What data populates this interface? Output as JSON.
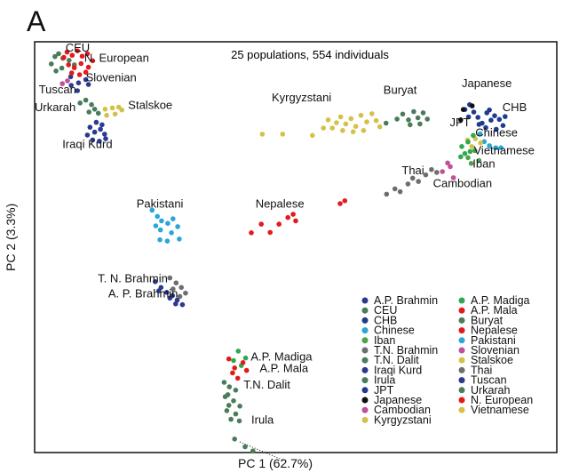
{
  "figure": {
    "panel_letter": "A"
  },
  "chart_data": {
    "type": "scatter",
    "title": "25 populations, 554 individuals",
    "xlabel": "PC 1 (62.7%)",
    "ylabel": "PC 2 (3.3%)",
    "xlim": [
      0,
      100
    ],
    "ylim": [
      0,
      100
    ],
    "grid": false,
    "legend_position": "bottom-right",
    "series": [
      {
        "name": "A.P. Brahmin",
        "color": "#2b3990",
        "points": [
          [
            23.1,
            41.6
          ],
          [
            24.2,
            40.2
          ],
          [
            25.3,
            39.0
          ],
          [
            26.4,
            38.2
          ],
          [
            27.3,
            37.1
          ],
          [
            28.3,
            36.0
          ],
          [
            23.8,
            39.4
          ],
          [
            25.9,
            37.6
          ],
          [
            27.0,
            36.2
          ]
        ]
      },
      {
        "name": "CEU",
        "color": "#4a7c59",
        "points": [
          [
            3.2,
            94.6
          ],
          [
            3.9,
            96.4
          ],
          [
            4.6,
            97.1
          ],
          [
            5.4,
            96.0
          ],
          [
            6.6,
            95.5
          ],
          [
            7.6,
            94.4
          ],
          [
            4.1,
            92.9
          ],
          [
            5.2,
            93.6
          ]
        ]
      },
      {
        "name": "CHB",
        "color": "#1f3b8f",
        "points": [
          [
            84.9,
            81.6
          ],
          [
            85.7,
            80.2
          ],
          [
            86.6,
            82.7
          ],
          [
            87.4,
            80.9
          ],
          [
            88.1,
            82.0
          ],
          [
            89.0,
            81.1
          ],
          [
            89.7,
            79.6
          ],
          [
            86.4,
            79.1
          ],
          [
            88.4,
            78.7
          ],
          [
            85.1,
            79.9
          ],
          [
            87.1,
            83.4
          ],
          [
            90.1,
            81.8
          ]
        ]
      },
      {
        "name": "Chinese",
        "color": "#2aa7d6",
        "points": [
          [
            86.1,
            75.7
          ],
          [
            87.1,
            74.7
          ],
          [
            88.3,
            74.2
          ],
          [
            89.3,
            74.2
          ],
          [
            85.3,
            77.6
          ]
        ]
      },
      {
        "name": "Iban",
        "color": "#4aa34a",
        "points": [
          [
            83.0,
            71.8
          ],
          [
            84.3,
            73.5
          ],
          [
            85.1,
            71.1
          ],
          [
            83.6,
            70.4
          ]
        ]
      },
      {
        "name": "T.N. Brahmin",
        "color": "#6d6e71",
        "points": [
          [
            25.9,
            42.5
          ],
          [
            27.1,
            41.3
          ],
          [
            28.1,
            40.2
          ],
          [
            26.5,
            39.8
          ],
          [
            28.9,
            38.8
          ],
          [
            27.8,
            38.0
          ]
        ]
      },
      {
        "name": "T.N. Dalit",
        "color": "#4a7c59",
        "points": [
          [
            36.3,
            17.1
          ],
          [
            37.3,
            16.0
          ],
          [
            38.5,
            15.2
          ],
          [
            37.0,
            14.1
          ]
        ]
      },
      {
        "name": "Iraqi Kurd",
        "color": "#2b3990",
        "points": [
          [
            10.6,
            79.2
          ],
          [
            11.5,
            78.0
          ],
          [
            12.6,
            78.7
          ],
          [
            13.4,
            77.5
          ],
          [
            11.1,
            76.1
          ],
          [
            12.4,
            75.8
          ],
          [
            13.6,
            76.4
          ],
          [
            11.8,
            80.4
          ],
          [
            10.1,
            77.3
          ],
          [
            12.9,
            79.8
          ]
        ]
      },
      {
        "name": "Irula",
        "color": "#4a7c59",
        "points": [
          [
            36.5,
            13.6
          ],
          [
            38.1,
            12.6
          ],
          [
            37.2,
            11.5
          ],
          [
            39.3,
            11.3
          ],
          [
            36.8,
            10.2
          ],
          [
            38.5,
            9.4
          ],
          [
            37.6,
            8.1
          ],
          [
            39.2,
            7.7
          ],
          [
            38.3,
            3.3
          ],
          [
            40.3,
            1.4
          ],
          [
            41.8,
            0.4
          ]
        ]
      },
      {
        "name": "JPT",
        "color": "#1f3b8f",
        "points": [
          [
            82.4,
            83.5
          ],
          [
            83.3,
            84.7
          ],
          [
            84.1,
            82.9
          ],
          [
            83.1,
            81.7
          ]
        ]
      },
      {
        "name": "Japanese",
        "color": "#111111",
        "points": [
          [
            81.6,
            81.0
          ],
          [
            82.1,
            83.5
          ],
          [
            83.8,
            84.4
          ]
        ]
      },
      {
        "name": "Cambodian",
        "color": "#c04f9c",
        "points": [
          [
            78.1,
            68.4
          ],
          [
            79.6,
            69.6
          ],
          [
            80.2,
            66.9
          ],
          [
            79.1,
            70.5
          ]
        ]
      },
      {
        "name": "Kyrgyzstani",
        "color": "#d4c14a",
        "points": [
          [
            43.6,
            77.5
          ],
          [
            47.5,
            77.5
          ],
          [
            53.2,
            77.2
          ],
          [
            55.3,
            79.0
          ],
          [
            56.2,
            81.0
          ],
          [
            57.8,
            80.3
          ],
          [
            58.6,
            81.7
          ],
          [
            59.6,
            80.0
          ],
          [
            60.6,
            81.3
          ],
          [
            61.5,
            79.4
          ],
          [
            62.5,
            82.1
          ],
          [
            63.6,
            80.5
          ],
          [
            64.6,
            82.5
          ],
          [
            65.4,
            80.8
          ],
          [
            66.1,
            79.3
          ],
          [
            57.0,
            79.0
          ],
          [
            59.0,
            78.4
          ],
          [
            61.0,
            78.1
          ],
          [
            63.0,
            78.4
          ]
        ]
      },
      {
        "name": "A.P. Madiga",
        "color": "#2fa84f",
        "points": [
          [
            39.0,
            24.7
          ],
          [
            38.1,
            22.4
          ],
          [
            40.4,
            23.0
          ],
          [
            39.6,
            21.2
          ]
        ]
      },
      {
        "name": "A.P. Mala",
        "color": "#e31a1c",
        "points": [
          [
            37.2,
            22.8
          ],
          [
            38.3,
            20.6
          ],
          [
            39.9,
            21.9
          ],
          [
            37.9,
            19.4
          ],
          [
            40.6,
            20.0
          ],
          [
            38.9,
            18.1
          ]
        ]
      },
      {
        "name": "Buryat",
        "color": "#4a7c59",
        "points": [
          [
            67.3,
            80.2
          ],
          [
            69.4,
            81.2
          ],
          [
            70.5,
            82.4
          ],
          [
            71.6,
            81.0
          ],
          [
            72.6,
            83.0
          ],
          [
            73.4,
            81.5
          ],
          [
            74.4,
            82.7
          ],
          [
            75.2,
            81.2
          ],
          [
            71.9,
            79.8
          ],
          [
            73.8,
            80.0
          ]
        ]
      },
      {
        "name": "Nepalese",
        "color": "#e31a1c",
        "points": [
          [
            41.5,
            53.5
          ],
          [
            43.4,
            55.6
          ],
          [
            45.1,
            53.6
          ],
          [
            46.8,
            55.6
          ],
          [
            48.5,
            57.2
          ],
          [
            49.5,
            58.0
          ],
          [
            50.0,
            56.4
          ],
          [
            58.5,
            60.6
          ],
          [
            59.4,
            61.3
          ]
        ]
      },
      {
        "name": "Pakistani",
        "color": "#2aa7d6",
        "points": [
          [
            22.5,
            59.0
          ],
          [
            23.5,
            57.5
          ],
          [
            24.3,
            56.4
          ],
          [
            25.5,
            55.8
          ],
          [
            26.5,
            56.9
          ],
          [
            27.4,
            55.0
          ],
          [
            24.1,
            54.2
          ],
          [
            26.2,
            53.5
          ],
          [
            27.7,
            52.0
          ],
          [
            25.4,
            51.5
          ],
          [
            23.2,
            55.2
          ],
          [
            24.0,
            51.8
          ]
        ]
      },
      {
        "name": "Slovenian",
        "color": "#c04f9c",
        "points": [
          [
            5.3,
            89.8
          ],
          [
            6.3,
            90.5
          ]
        ]
      },
      {
        "name": "Stalskoe",
        "color": "#d4c14a",
        "points": [
          [
            13.5,
            83.6
          ],
          [
            14.9,
            83.9
          ],
          [
            16.1,
            84.1
          ],
          [
            13.8,
            82.1
          ],
          [
            15.4,
            82.4
          ],
          [
            16.7,
            83.4
          ]
        ]
      },
      {
        "name": "Thai",
        "color": "#6d6e71",
        "points": [
          [
            67.4,
            62.9
          ],
          [
            69.0,
            64.2
          ],
          [
            70.0,
            63.5
          ],
          [
            71.5,
            65.4
          ],
          [
            72.4,
            66.8
          ],
          [
            73.5,
            66.0
          ],
          [
            74.9,
            67.6
          ],
          [
            76.0,
            68.9
          ],
          [
            77.0,
            68.2
          ]
        ]
      },
      {
        "name": "Tuscan",
        "color": "#2b3990",
        "points": [
          [
            7.0,
            89.4
          ],
          [
            8.4,
            90.0
          ],
          [
            9.8,
            90.8
          ],
          [
            8.2,
            88.1
          ],
          [
            10.3,
            89.6
          ],
          [
            6.9,
            91.5
          ]
        ]
      },
      {
        "name": "Urkarah",
        "color": "#4a7c59",
        "points": [
          [
            9.8,
            85.8
          ],
          [
            10.9,
            84.7
          ],
          [
            11.5,
            83.6
          ],
          [
            12.2,
            82.6
          ],
          [
            8.7,
            85.1
          ],
          [
            10.4,
            82.9
          ]
        ]
      },
      {
        "name": "N. European",
        "color": "#e31a1c",
        "points": [
          [
            6.2,
            97.5
          ],
          [
            7.2,
            96.7
          ],
          [
            8.2,
            97.8
          ],
          [
            9.1,
            96.5
          ],
          [
            10.1,
            97.1
          ],
          [
            6.5,
            94.4
          ],
          [
            7.6,
            93.7
          ],
          [
            8.9,
            94.7
          ],
          [
            10.3,
            93.8
          ],
          [
            7.1,
            92.4
          ],
          [
            8.6,
            92.0
          ],
          [
            9.8,
            92.6
          ],
          [
            5.6,
            96.2
          ],
          [
            11.1,
            95.4
          ]
        ]
      },
      {
        "name": "Vietnamese",
        "color": "#d4c14a",
        "points": [
          [
            84.4,
            76.4
          ],
          [
            85.4,
            75.4
          ],
          [
            83.7,
            74.5
          ],
          [
            82.9,
            76.1
          ]
        ]
      },
      {
        "name": "",
        "color": "#2fa84f",
        "points": [
          [
            81.8,
            74.5
          ],
          [
            83.0,
            75.6
          ],
          [
            84.0,
            77.2
          ],
          [
            82.4,
            72.8
          ],
          [
            83.4,
            73.3
          ],
          [
            81.6,
            72.0
          ]
        ]
      }
    ],
    "labels": [
      {
        "text": "CEU",
        "x": 5.9,
        "y": 97.6
      },
      {
        "text": "N. European",
        "x": 9.5,
        "y": 95.1
      },
      {
        "text": "Slovenian",
        "x": 9.8,
        "y": 90.4
      },
      {
        "text": "Tuscan",
        "x": 0.8,
        "y": 87.5
      },
      {
        "text": "Urkarah",
        "x": 0.0,
        "y": 83.1
      },
      {
        "text": "Stalskoe",
        "x": 17.9,
        "y": 83.7
      },
      {
        "text": "Iraqi Kurd",
        "x": 5.3,
        "y": 74.1
      },
      {
        "text": "Kyrgyzstani",
        "x": 45.4,
        "y": 85.5
      },
      {
        "text": "Buryat",
        "x": 66.8,
        "y": 87.3
      },
      {
        "text": "Japanese",
        "x": 81.8,
        "y": 89.0
      },
      {
        "text": "CHB",
        "x": 89.6,
        "y": 83.1
      },
      {
        "text": "JPT",
        "x": 79.5,
        "y": 79.4
      },
      {
        "text": "Chinese",
        "x": 84.4,
        "y": 77.0
      },
      {
        "text": "Vietnamese",
        "x": 84.1,
        "y": 72.6
      },
      {
        "text": "Iban",
        "x": 83.9,
        "y": 69.4
      },
      {
        "text": "Thai",
        "x": 70.3,
        "y": 67.7
      },
      {
        "text": "Cambodian",
        "x": 76.3,
        "y": 64.6
      },
      {
        "text": "Pakistani",
        "x": 19.5,
        "y": 59.6
      },
      {
        "text": "Nepalese",
        "x": 42.3,
        "y": 59.6
      },
      {
        "text": "T. N. Brahmin",
        "x": 12.1,
        "y": 41.5
      },
      {
        "text": "A. P. Brahmin",
        "x": 14.1,
        "y": 37.8
      },
      {
        "text": "A.P. Madiga",
        "x": 41.4,
        "y": 22.4
      },
      {
        "text": "A.P. Mala",
        "x": 43.1,
        "y": 19.6
      },
      {
        "text": "T.N. Dalit",
        "x": 40.0,
        "y": 15.6
      },
      {
        "text": "Irula",
        "x": 41.5,
        "y": 7.0
      }
    ]
  }
}
